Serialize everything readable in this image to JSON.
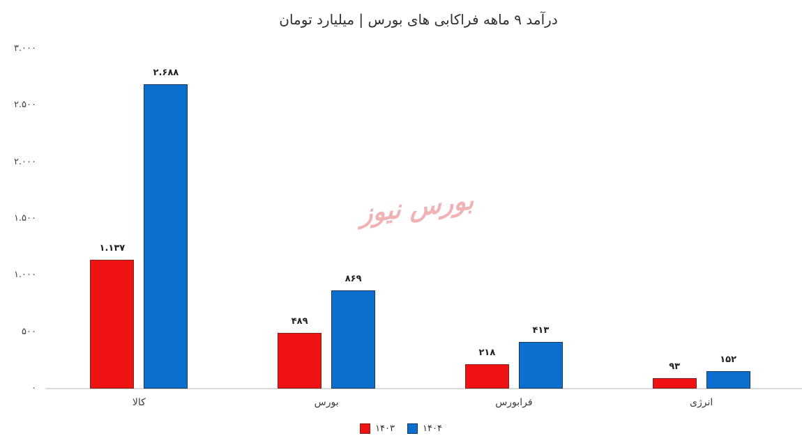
{
  "watermark": {
    "text": "بورس نیوز",
    "color": "#f1b2b6"
  },
  "chart_data": {
    "type": "bar",
    "title": "درآمد ۹ ماهه فراکابی های بورس | میلیارد تومان",
    "categories": [
      "کالا",
      "بورس",
      "فرابورس",
      "انرژی"
    ],
    "series": [
      {
        "name": "۱۴۰۳",
        "color": "#ee1212",
        "border_color": "#7d241b",
        "values": [
          1137,
          489,
          218,
          93
        ]
      },
      {
        "name": "۱۴۰۴",
        "color": "#0c6fce",
        "border_color": "#17375e",
        "values": [
          2688,
          869,
          413,
          152
        ]
      }
    ],
    "value_label_texts": [
      [
        "۱.۱۳۷",
        "۴۸۹",
        "۲۱۸",
        "۹۳"
      ],
      [
        "۲.۶۸۸",
        "۸۶۹",
        "۴۱۳",
        "۱۵۲"
      ]
    ],
    "ytick_labels": [
      "۰",
      "۵۰۰",
      "۱.۰۰۰",
      "۱.۵۰۰",
      "۲.۰۰۰",
      "۲.۵۰۰",
      "۳.۰۰۰"
    ],
    "xlabel": "",
    "ylabel": "",
    "ylim": [
      0,
      3000
    ],
    "ytick_step": 500,
    "grid": false,
    "legend_position": "bottom",
    "value_labels": true,
    "axis_line_color": "#d9d9d9"
  }
}
